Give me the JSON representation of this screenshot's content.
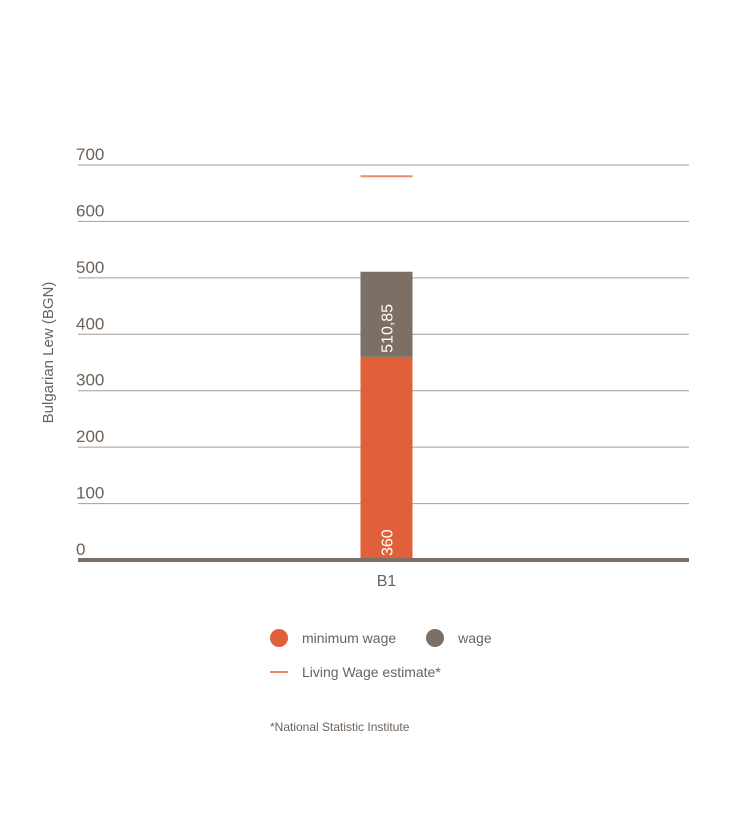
{
  "chart_data": {
    "type": "bar",
    "stacked": true,
    "title": "",
    "xlabel": "",
    "ylabel": "Bulgarian Lew (BGN)",
    "ylim": [
      0,
      700
    ],
    "yticks": [
      0,
      100,
      200,
      300,
      400,
      500,
      600,
      700
    ],
    "categories": [
      "B1"
    ],
    "grid": true,
    "legend_position": "bottom",
    "series": [
      {
        "name": "minimum wage",
        "values": [
          360
        ],
        "color": "#e0603a",
        "label": "360"
      },
      {
        "name": "wage",
        "values": [
          150.85
        ],
        "color": "#7b6f66",
        "label": "510,85",
        "total": 510.85
      }
    ],
    "reference_lines": [
      {
        "name": "Living Wage estimate*",
        "value": 680,
        "color": "#f08a6b"
      }
    ]
  },
  "legend": {
    "items": [
      {
        "label": "minimum wage",
        "color": "#e0603a",
        "shape": "dot"
      },
      {
        "label": "wage",
        "color": "#7b6f66",
        "shape": "dot"
      },
      {
        "label": "Living Wage estimate*",
        "color": "#f08a6b",
        "shape": "line"
      }
    ]
  },
  "footnote": "*National Statistic Institute"
}
